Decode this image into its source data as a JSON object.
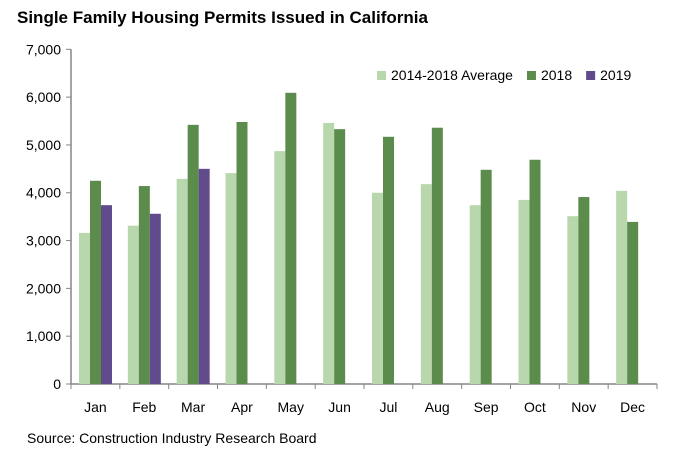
{
  "chart_data": {
    "type": "bar",
    "title": "Single Family Housing Permits Issued in California",
    "xlabel": "",
    "ylabel": "",
    "ylim": [
      0,
      7000
    ],
    "yticks": [
      "0",
      "1,000",
      "2,000",
      "3,000",
      "4,000",
      "5,000",
      "6,000",
      "7,000"
    ],
    "grid": false,
    "legend_position": "top-right",
    "categories": [
      "Jan",
      "Feb",
      "Mar",
      "Apr",
      "May",
      "Jun",
      "Jul",
      "Aug",
      "Sep",
      "Oct",
      "Nov",
      "Dec"
    ],
    "series": [
      {
        "name": "2014-2018 Average",
        "color": "#b9d7ad",
        "values": [
          3160,
          3310,
          4290,
          4410,
          4870,
          5460,
          4000,
          4180,
          3740,
          3850,
          3510,
          4040
        ]
      },
      {
        "name": "2018",
        "color": "#5b8c4b",
        "values": [
          4250,
          4140,
          5420,
          5480,
          6090,
          5330,
          5170,
          5360,
          4480,
          4690,
          3910,
          3390
        ]
      },
      {
        "name": "2019",
        "color": "#614b8c",
        "values": [
          3740,
          3560,
          4500,
          null,
          null,
          null,
          null,
          null,
          null,
          null,
          null,
          null
        ]
      }
    ],
    "source": "Source: Construction Industry Research Board"
  }
}
